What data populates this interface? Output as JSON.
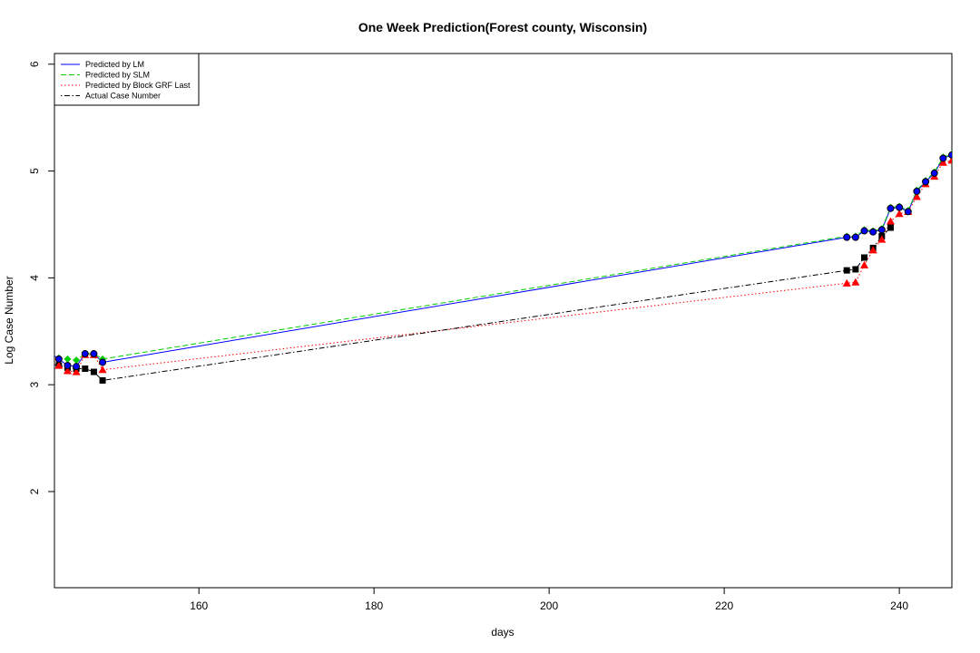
{
  "chart_data": {
    "type": "line",
    "title": "One Week Prediction(Forest county, Wisconsin)",
    "xlabel": "days",
    "ylabel": "Log Case Number",
    "xlim": [
      143.5,
      246
    ],
    "ylim": [
      1.1,
      6.1
    ],
    "x_ticks": [
      160,
      180,
      200,
      220,
      240
    ],
    "y_ticks": [
      2,
      3,
      4,
      5,
      6
    ],
    "grid": false,
    "legend_position": "top-left",
    "series": [
      {
        "name": "Predicted by LM",
        "color": "#0000ff",
        "line_style": "solid",
        "marker": "circle-filled",
        "marker_color": "#0000ff",
        "x": [
          143,
          144,
          145,
          146,
          147,
          148,
          149,
          234,
          235,
          236,
          237,
          238,
          239,
          240,
          241,
          242,
          243,
          244,
          245,
          246
        ],
        "y": [
          3.3,
          3.24,
          3.18,
          3.17,
          3.29,
          3.29,
          3.21,
          4.38,
          4.38,
          4.44,
          4.43,
          4.45,
          4.65,
          4.66,
          4.62,
          4.81,
          4.9,
          4.98,
          5.12,
          5.15
        ]
      },
      {
        "name": "Predicted by SLM",
        "color": "#00cd00",
        "line_style": "dashed",
        "marker": "diamond",
        "marker_color": "#00cd00",
        "x": [
          143,
          144,
          145,
          146,
          147,
          148,
          149,
          234,
          235,
          236,
          237,
          238,
          239,
          240,
          241,
          242,
          243,
          244,
          245,
          246
        ],
        "y": [
          3.3,
          3.25,
          3.24,
          3.23,
          3.29,
          3.29,
          3.24,
          4.39,
          4.39,
          4.45,
          4.44,
          4.46,
          4.66,
          4.67,
          4.63,
          4.82,
          4.91,
          4.99,
          5.13,
          5.16
        ]
      },
      {
        "name": "Predicted by Block GRF Last",
        "color": "#ff0000",
        "line_style": "dotted",
        "marker": "triangle",
        "marker_color": "#ff0000",
        "x": [
          143,
          144,
          145,
          146,
          147,
          148,
          149,
          234,
          235,
          236,
          237,
          238,
          239,
          240,
          241,
          242,
          243,
          244,
          245,
          246
        ],
        "y": [
          3.3,
          3.18,
          3.13,
          3.12,
          3.28,
          3.28,
          3.14,
          3.95,
          3.96,
          4.12,
          4.26,
          4.36,
          4.53,
          4.6,
          4.62,
          4.76,
          4.88,
          4.95,
          5.08,
          5.1
        ]
      },
      {
        "name": "Actual Case Number",
        "color": "#000000",
        "line_style": "dotdash",
        "marker": "square",
        "marker_color": "#000000",
        "x": [
          143,
          144,
          145,
          146,
          147,
          148,
          149,
          234,
          235,
          236,
          237,
          238,
          239
        ],
        "y": [
          3.19,
          3.18,
          3.16,
          3.15,
          3.15,
          3.12,
          3.04,
          4.07,
          4.08,
          4.19,
          4.28,
          4.39,
          4.47
        ]
      }
    ]
  }
}
